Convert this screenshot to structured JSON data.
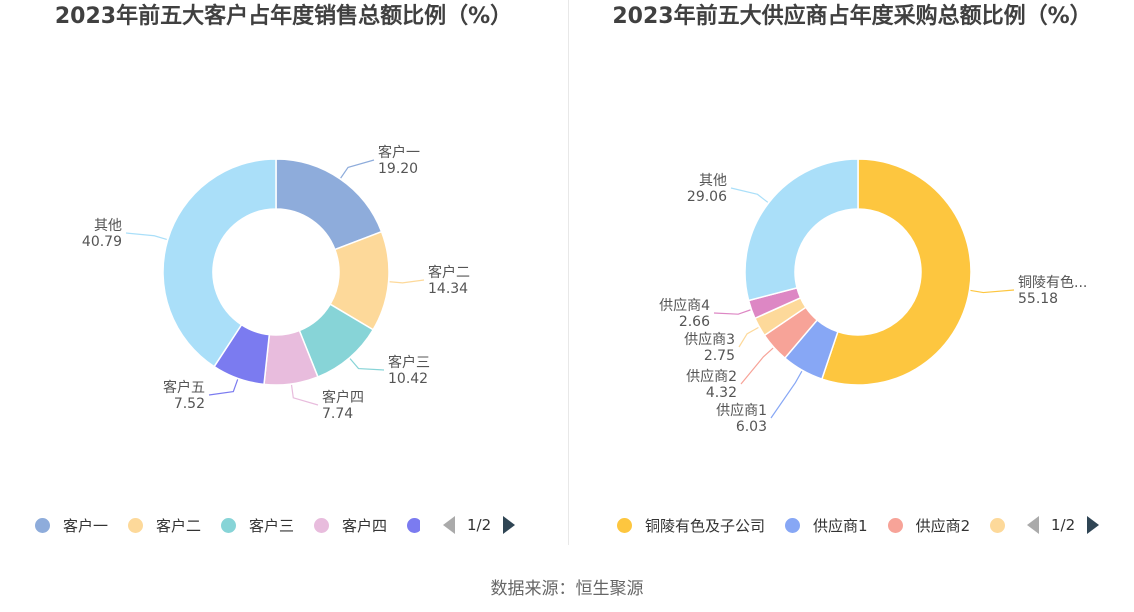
{
  "source_label": "数据来源：恒生聚源",
  "chart_data": [
    {
      "type": "pie",
      "title": "2023年前五大客户占年度销售总额比例（%）",
      "slices": [
        {
          "name": "客户一",
          "value": 19.2,
          "label": "19.20",
          "color": "#8eacdb"
        },
        {
          "name": "客户二",
          "value": 14.34,
          "label": "14.34",
          "color": "#fdd99a"
        },
        {
          "name": "客户三",
          "value": 10.42,
          "label": "10.42",
          "color": "#87d4d7"
        },
        {
          "name": "客户四",
          "value": 7.74,
          "label": "7.74",
          "color": "#e8bcdd"
        },
        {
          "name": "客户五",
          "value": 7.52,
          "label": "7.52",
          "color": "#7b7bf0"
        },
        {
          "name": "其他",
          "value": 40.79,
          "label": "40.79",
          "color": "#aadff9"
        }
      ],
      "legend": {
        "placement": "bottom",
        "visible_items": [
          "客户一",
          "客户二",
          "客户三",
          "客户四",
          ""
        ],
        "page": "1/2"
      }
    },
    {
      "type": "pie",
      "title": "2023年前五大供应商占年度采购总额比例（%）",
      "slices": [
        {
          "name": "铜陵有色...",
          "value": 55.18,
          "label": "55.18",
          "color": "#fdc63f"
        },
        {
          "name": "供应商1",
          "value": 6.03,
          "label": "6.03",
          "color": "#87a7f5"
        },
        {
          "name": "供应商2",
          "value": 4.32,
          "label": "4.32",
          "color": "#f7a398"
        },
        {
          "name": "供应商3",
          "value": 2.75,
          "label": "2.75",
          "color": "#fdd99a"
        },
        {
          "name": "供应商4",
          "value": 2.66,
          "label": "2.66",
          "color": "#dd87c4"
        },
        {
          "name": "其他",
          "value": 29.06,
          "label": "29.06",
          "color": "#aadff9"
        }
      ],
      "legend": {
        "placement": "bottom",
        "visible_items": [
          "铜陵有色及子公司",
          "供应商1",
          "供应商2",
          ""
        ],
        "page": "1/2"
      }
    }
  ]
}
